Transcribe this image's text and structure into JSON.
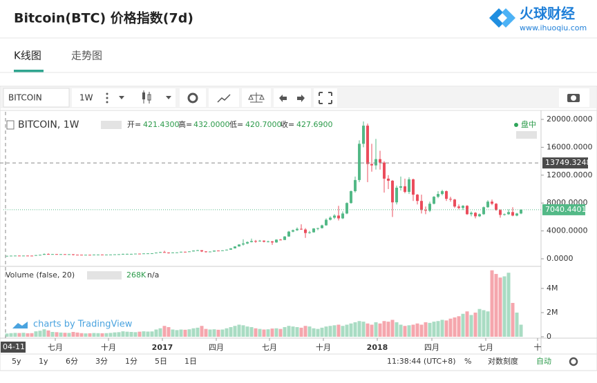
{
  "header": {
    "title": "Bitcoin(BTC) 价格指数(7d)",
    "logo": "火球财经",
    "site": "www.ihuoqiu.com"
  },
  "tabs": [
    "K线图",
    "走势图"
  ],
  "toolbar": {
    "symbol": "BITCOIN",
    "interval": "1W"
  },
  "legend": {
    "symbol": "BITCOIN, 1W",
    "open_label": "开=",
    "open": "421.4300",
    "high_label": "高=",
    "high": "432.0000",
    "low_label": "低=",
    "low": "420.7000",
    "close_label": "收=",
    "close": "427.6900",
    "status": "盘中",
    "volume_title": "Volume (false, 20)",
    "volume_value": "268K",
    "volume_ma": "n/a",
    "watermark": "charts by TradingView"
  },
  "footer": {
    "ranges": [
      "5y",
      "1y",
      "6分",
      "3分",
      "1分",
      "5日",
      "1日"
    ],
    "time": "11:38:44 (UTC+8)",
    "percent": "%",
    "log": "对数刻度",
    "auto": "自动"
  },
  "chart_data": {
    "type": "candlestick",
    "up_color": "#53b987",
    "down_color": "#eb4d5c",
    "grid": false,
    "xlim": [
      -0.83,
      128.83
    ],
    "xticks": [
      {
        "value": 11.67,
        "label": "七月"
      },
      {
        "value": 24.5,
        "label": "十月"
      },
      {
        "value": 37.5,
        "label": "2017"
      },
      {
        "value": 50.5,
        "label": "四月"
      },
      {
        "value": 63.33,
        "label": "七月"
      },
      {
        "value": 76.33,
        "label": "十月"
      },
      {
        "value": 89.33,
        "label": "2018"
      },
      {
        "value": 102.5,
        "label": "四月"
      },
      {
        "value": 115.5,
        "label": "七月"
      },
      {
        "value": 128,
        "label": "十"
      }
    ],
    "ylim": [
      -790,
      21090
    ],
    "yticks": [
      {
        "value": 0,
        "label": "0.0000"
      },
      {
        "value": 4000,
        "label": "4000.0000"
      },
      {
        "value": 8000,
        "label": "8000.0000"
      },
      {
        "value": 12000,
        "label": "12000.0000"
      },
      {
        "value": 16000,
        "label": "16000.0000"
      },
      {
        "value": 20000,
        "label": "20000.0000"
      }
    ],
    "y2lim": [
      -114000,
      5540000
    ],
    "y2ticks": [
      0,
      {
        "value": 2000000,
        "label": "2M"
      },
      {
        "value": 4000000,
        "label": "4M"
      }
    ],
    "crosshair": {
      "price": 13749.3248,
      "date": "04-11"
    },
    "last_price": 7040.4401,
    "candles": [
      [
        421.43,
        432,
        420.7,
        427.69
      ],
      [
        427.69,
        460,
        425,
        450
      ],
      [
        450,
        465,
        440,
        460
      ],
      [
        460,
        468,
        445,
        455
      ],
      [
        455,
        465,
        440,
        460
      ],
      [
        460,
        468,
        445,
        455
      ],
      [
        455,
        460,
        435,
        445
      ],
      [
        445,
        540,
        440,
        530
      ],
      [
        530,
        590,
        520,
        575
      ],
      [
        575,
        760,
        570,
        690
      ],
      [
        690,
        780,
        620,
        660
      ],
      [
        660,
        700,
        640,
        675
      ],
      [
        675,
        680,
        620,
        650
      ],
      [
        650,
        680,
        640,
        665
      ],
      [
        665,
        670,
        640,
        650
      ],
      [
        650,
        665,
        640,
        655
      ],
      [
        655,
        660,
        480,
        590
      ],
      [
        590,
        600,
        570,
        585
      ],
      [
        585,
        590,
        565,
        575
      ],
      [
        575,
        590,
        570,
        580
      ],
      [
        580,
        585,
        565,
        575
      ],
      [
        575,
        610,
        570,
        605
      ],
      [
        605,
        615,
        600,
        610
      ],
      [
        610,
        612,
        595,
        605
      ],
      [
        605,
        612,
        600,
        605
      ],
      [
        605,
        620,
        600,
        615
      ],
      [
        615,
        645,
        610,
        640
      ],
      [
        640,
        660,
        630,
        655
      ],
      [
        655,
        740,
        650,
        700
      ],
      [
        700,
        740,
        690,
        705
      ],
      [
        705,
        720,
        690,
        705
      ],
      [
        705,
        745,
        700,
        740
      ],
      [
        740,
        750,
        720,
        735
      ],
      [
        735,
        775,
        730,
        770
      ],
      [
        770,
        785,
        760,
        780
      ],
      [
        780,
        795,
        775,
        790
      ],
      [
        790,
        900,
        785,
        890
      ],
      [
        890,
        1000,
        880,
        960
      ],
      [
        960,
        1150,
        880,
        900
      ],
      [
        900,
        920,
        760,
        820
      ],
      [
        820,
        920,
        810,
        910
      ],
      [
        910,
        930,
        880,
        920
      ],
      [
        920,
        1020,
        910,
        1010
      ],
      [
        1010,
        1030,
        980,
        1000
      ],
      [
        1000,
        1070,
        990,
        1060
      ],
      [
        1060,
        1200,
        1050,
        1180
      ],
      [
        1180,
        1290,
        1150,
        1230
      ],
      [
        1230,
        1240,
        970,
        1060
      ],
      [
        1060,
        1080,
        900,
        1000
      ],
      [
        1000,
        1060,
        960,
        1040
      ],
      [
        1040,
        1190,
        1030,
        1180
      ],
      [
        1180,
        1200,
        1150,
        1170
      ],
      [
        1170,
        1230,
        1160,
        1210
      ],
      [
        1210,
        1330,
        1200,
        1310
      ],
      [
        1310,
        1520,
        1300,
        1500
      ],
      [
        1500,
        1800,
        1480,
        1770
      ],
      [
        1770,
        2100,
        1750,
        2050
      ],
      [
        2050,
        2800,
        1900,
        2200
      ],
      [
        2200,
        2500,
        2100,
        2400
      ],
      [
        2400,
        2900,
        2350,
        2550
      ],
      [
        2550,
        2700,
        2300,
        2500
      ],
      [
        2500,
        2700,
        2450,
        2600
      ],
      [
        2600,
        2650,
        2350,
        2450
      ],
      [
        2450,
        2600,
        2350,
        2500
      ],
      [
        2500,
        2550,
        2000,
        2350
      ],
      [
        2350,
        2800,
        2300,
        2750
      ],
      [
        2750,
        2850,
        2650,
        2700
      ],
      [
        2700,
        3250,
        2690,
        3200
      ],
      [
        3200,
        4000,
        3150,
        3900
      ],
      [
        3900,
        4200,
        3800,
        4100
      ],
      [
        4100,
        4500,
        4000,
        4300
      ],
      [
        4300,
        4950,
        4150,
        4200
      ],
      [
        4200,
        4400,
        3000,
        3700
      ],
      [
        3700,
        4000,
        3600,
        3800
      ],
      [
        3800,
        4400,
        3750,
        4350
      ],
      [
        4350,
        4450,
        4100,
        4400
      ],
      [
        4400,
        4900,
        4350,
        4800
      ],
      [
        4800,
        5800,
        4750,
        5600
      ],
      [
        5600,
        6100,
        5500,
        5900
      ],
      [
        5900,
        6400,
        5700,
        6200
      ],
      [
        6200,
        7600,
        5500,
        5800
      ],
      [
        5800,
        6800,
        5700,
        6500
      ],
      [
        6500,
        8100,
        6400,
        8000
      ],
      [
        8000,
        9800,
        7900,
        9700
      ],
      [
        9700,
        11800,
        9500,
        11300
      ],
      [
        11300,
        17000,
        11000,
        16500
      ],
      [
        16500,
        19700,
        16000,
        19100
      ],
      [
        19100,
        19400,
        11000,
        13600
      ],
      [
        13600,
        16500,
        12500,
        13400
      ],
      [
        13400,
        17200,
        12800,
        14300
      ],
      [
        14300,
        15500,
        12800,
        13800
      ],
      [
        13800,
        14000,
        9500,
        11500
      ],
      [
        11500,
        12000,
        10000,
        11200
      ],
      [
        11200,
        11300,
        6000,
        8100
      ],
      [
        8100,
        10500,
        7800,
        10200
      ],
      [
        10200,
        11800,
        9800,
        10400
      ],
      [
        10400,
        11500,
        9400,
        9600
      ],
      [
        9600,
        11700,
        9300,
        11400
      ],
      [
        11400,
        11500,
        8300,
        9200
      ],
      [
        9200,
        9300,
        7800,
        8300
      ],
      [
        8300,
        9200,
        6500,
        7000
      ],
      [
        7000,
        7500,
        6400,
        6900
      ],
      [
        6900,
        8200,
        6700,
        7900
      ],
      [
        7900,
        9000,
        7800,
        8900
      ],
      [
        8900,
        9700,
        8700,
        9300
      ],
      [
        9300,
        9900,
        9100,
        9700
      ],
      [
        9700,
        9800,
        8300,
        8600
      ],
      [
        8600,
        8900,
        8200,
        8500
      ],
      [
        8500,
        8600,
        7300,
        7500
      ],
      [
        7500,
        7800,
        7100,
        7300
      ],
      [
        7300,
        7700,
        7000,
        7600
      ],
      [
        7600,
        7700,
        6300,
        6400
      ],
      [
        6400,
        6800,
        6100,
        6600
      ],
      [
        6600,
        6700,
        5800,
        6100
      ],
      [
        6100,
        6500,
        6000,
        6400
      ],
      [
        6400,
        7500,
        6300,
        7400
      ],
      [
        7400,
        8400,
        7300,
        8200
      ],
      [
        8200,
        8500,
        7700,
        7900
      ],
      [
        7900,
        8000,
        6900,
        7000
      ],
      [
        7000,
        7100,
        5900,
        6300
      ],
      [
        6300,
        6500,
        6200,
        6400
      ],
      [
        6400,
        7100,
        6300,
        6700
      ],
      [
        6700,
        7400,
        6100,
        6200
      ],
      [
        6200,
        6600,
        6100,
        6500
      ],
      [
        6500,
        7100,
        6400,
        7040.4401
      ]
    ],
    "volume": [
      268000,
      300000,
      320000,
      310000,
      330000,
      290000,
      300000,
      450000,
      500000,
      620000,
      520000,
      400000,
      380000,
      350000,
      330000,
      320000,
      400000,
      350000,
      300000,
      280000,
      290000,
      310000,
      300000,
      290000,
      300000,
      320000,
      360000,
      380000,
      450000,
      420000,
      400000,
      380000,
      420000,
      450000,
      430000,
      440000,
      600000,
      700000,
      900000,
      800000,
      600000,
      550000,
      600000,
      580000,
      620000,
      700000,
      750000,
      900000,
      650000,
      600000,
      620000,
      580000,
      600000,
      700000,
      800000,
      900000,
      1000000,
      950000,
      850000,
      800000,
      700000,
      650000,
      600000,
      620000,
      680000,
      700000,
      650000,
      800000,
      900000,
      850000,
      800000,
      750000,
      900000,
      850000,
      700000,
      650000,
      750000,
      850000,
      900000,
      950000,
      1000000,
      900000,
      1000000,
      1100000,
      1200000,
      1300000,
      1250000,
      1100000,
      1000000,
      1200000,
      1100000,
      1300000,
      1250000,
      1400000,
      1200000,
      1000000,
      900000,
      950000,
      1000000,
      1100000,
      1000000,
      1200000,
      1150000,
      1250000,
      1300000,
      1400000,
      1350000,
      1500000,
      1600000,
      1700000,
      1900000,
      2100000,
      1800000,
      2000000,
      2300000,
      2200000,
      2100000,
      5500000,
      5200000,
      4900000,
      5000000,
      5300000,
      2800000,
      2000000,
      1000000
    ]
  }
}
